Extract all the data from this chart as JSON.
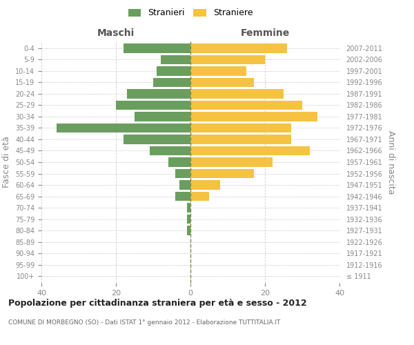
{
  "age_groups": [
    "100+",
    "95-99",
    "90-94",
    "85-89",
    "80-84",
    "75-79",
    "70-74",
    "65-69",
    "60-64",
    "55-59",
    "50-54",
    "45-49",
    "40-44",
    "35-39",
    "30-34",
    "25-29",
    "20-24",
    "15-19",
    "10-14",
    "5-9",
    "0-4"
  ],
  "birth_years": [
    "≤ 1911",
    "1912-1916",
    "1917-1921",
    "1922-1926",
    "1927-1931",
    "1932-1936",
    "1937-1941",
    "1942-1946",
    "1947-1951",
    "1952-1956",
    "1957-1961",
    "1962-1966",
    "1967-1971",
    "1972-1976",
    "1977-1981",
    "1982-1986",
    "1987-1991",
    "1992-1996",
    "1997-2001",
    "2002-2006",
    "2007-2011"
  ],
  "maschi": [
    0,
    0,
    0,
    0,
    1,
    1,
    1,
    4,
    3,
    4,
    6,
    11,
    18,
    36,
    15,
    20,
    17,
    10,
    9,
    8,
    18
  ],
  "femmine": [
    0,
    0,
    0,
    0,
    0,
    0,
    0,
    5,
    8,
    17,
    22,
    32,
    27,
    27,
    34,
    30,
    25,
    17,
    15,
    20,
    26
  ],
  "maschi_color": "#6a9e5e",
  "femmine_color": "#f5c242",
  "background_color": "#ffffff",
  "grid_color": "#cccccc",
  "title": "Popolazione per cittadinanza straniera per età e sesso - 2012",
  "subtitle": "COMUNE DI MORBEGNO (SO) - Dati ISTAT 1° gennaio 2012 - Elaborazione TUTTITALIA.IT",
  "xlabel_left": "Maschi",
  "xlabel_right": "Femmine",
  "ylabel_left": "Fasce di età",
  "ylabel_right": "Anni di nascita",
  "legend_maschi": "Stranieri",
  "legend_femmine": "Straniere",
  "xlim": 40,
  "bar_height": 0.8
}
